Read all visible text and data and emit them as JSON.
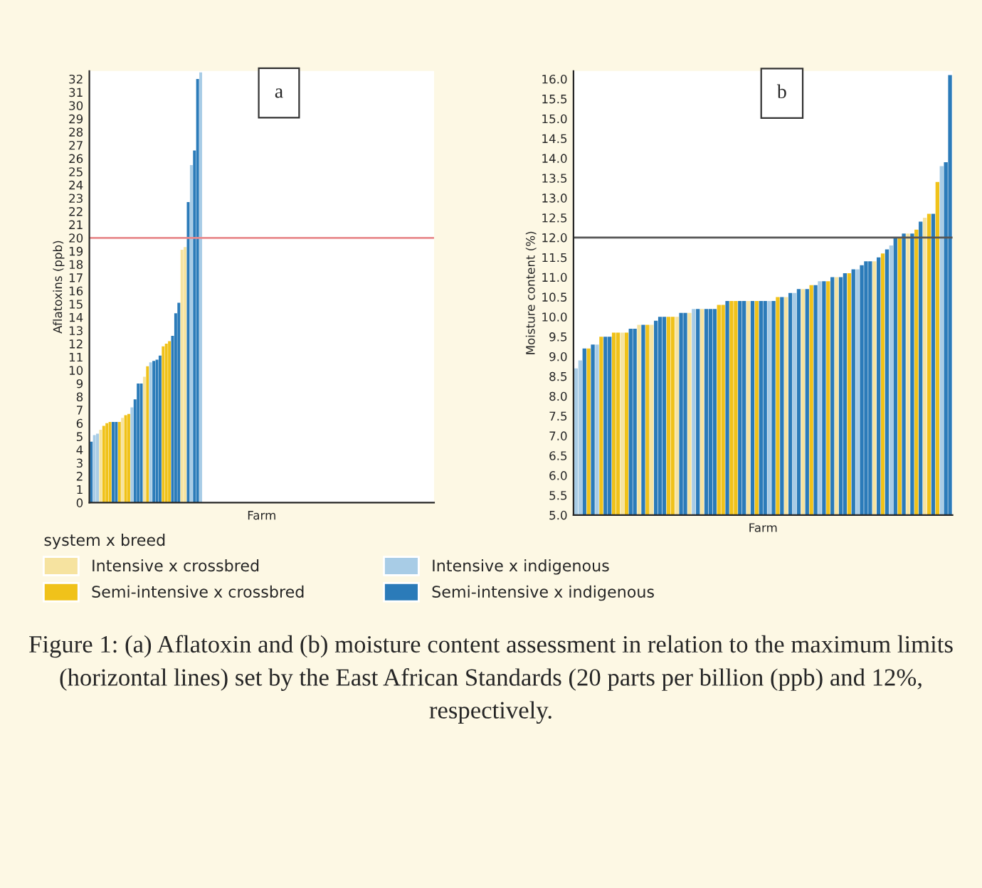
{
  "chart_data": [
    {
      "type": "bar",
      "title": "a",
      "xlabel": "Farm",
      "ylabel": "Aflatoxins (ppb)",
      "legend_title": "system x breed",
      "legend": "bottom",
      "categories": [
        null,
        null,
        null,
        null,
        null,
        null,
        null,
        null,
        null,
        null,
        null,
        null,
        null,
        null,
        null,
        null,
        null,
        null,
        null,
        null,
        null,
        null,
        null,
        null,
        null,
        null,
        null,
        null,
        null,
        null,
        null,
        null,
        null,
        null,
        null,
        null,
        null,
        null,
        null,
        null,
        null,
        null,
        null,
        null,
        null,
        null,
        null,
        null,
        null,
        null,
        null,
        null,
        null,
        null,
        null,
        null,
        null,
        null,
        null,
        null,
        null,
        null,
        null,
        null,
        null,
        null,
        null,
        null,
        null,
        null,
        null,
        null,
        null,
        null,
        null,
        null,
        null,
        null,
        null,
        null,
        null,
        null,
        null,
        null,
        null,
        null,
        null,
        null,
        null,
        null,
        null,
        null,
        null,
        null,
        null,
        null,
        null,
        null,
        null,
        null,
        null,
        null,
        null,
        null,
        null,
        null,
        null,
        null,
        null,
        null
      ],
      "series": [
        {
          "name": "Intensive x crossbred",
          "color": "#f6e3a0",
          "values": [
            null,
            null,
            null,
            5.5,
            null,
            null,
            null,
            null,
            null,
            null,
            6.4,
            null,
            null,
            null,
            null,
            null,
            null,
            9.5,
            null,
            null,
            null,
            null,
            null,
            null,
            null,
            null,
            null,
            null,
            null,
            19.1,
            19.3,
            null,
            null,
            null,
            null,
            null,
            null,
            null,
            null,
            null,
            null,
            null,
            null,
            null,
            null,
            null,
            null,
            null,
            null,
            null,
            null,
            null,
            null,
            null,
            null,
            null,
            null,
            null,
            null,
            null,
            null,
            null,
            null,
            null,
            null,
            null,
            null,
            null,
            null,
            null,
            null,
            null,
            null,
            null,
            null,
            null,
            null,
            null,
            null,
            null,
            null,
            null,
            null,
            null,
            null,
            null,
            null,
            null,
            null,
            null,
            null,
            null,
            null,
            null,
            null,
            null,
            null,
            null,
            null,
            null,
            null,
            null,
            null,
            null,
            null,
            null,
            null,
            null,
            null,
            null
          ]
        },
        {
          "name": "Semi-intensive x crossbred",
          "color": "#f0c21a",
          "values": [
            null,
            null,
            null,
            null,
            5.8,
            6.0,
            6.1,
            null,
            null,
            6.1,
            null,
            6.6,
            6.7,
            null,
            null,
            null,
            null,
            null,
            10.3,
            null,
            null,
            null,
            null,
            11.8,
            12.0,
            12.2,
            null,
            null,
            null,
            null,
            null,
            null,
            null,
            null,
            null,
            null,
            null,
            null,
            null,
            null,
            null,
            null,
            null,
            null,
            null,
            null,
            null,
            null,
            null,
            null,
            null,
            null,
            null,
            null,
            null,
            null,
            null,
            null,
            null,
            null,
            null,
            null,
            null,
            null,
            null,
            null,
            null,
            null,
            null,
            null,
            null,
            null,
            null,
            null,
            null,
            null,
            null,
            null,
            null,
            null,
            null,
            null,
            null,
            null,
            null,
            null,
            null,
            null,
            null,
            null,
            null,
            null,
            null,
            null,
            null,
            null,
            null,
            null,
            null,
            null,
            null,
            null,
            null,
            null,
            null,
            null,
            null,
            null,
            null,
            null
          ]
        },
        {
          "name": "Intensive x indigenous",
          "color": "#a8cce6",
          "values": [
            null,
            5.1,
            5.2,
            null,
            null,
            null,
            null,
            null,
            null,
            null,
            null,
            null,
            null,
            7.2,
            null,
            null,
            null,
            null,
            null,
            10.6,
            null,
            null,
            null,
            null,
            null,
            null,
            null,
            null,
            null,
            null,
            null,
            null,
            25.5,
            null,
            null,
            32.5,
            null,
            null,
            null,
            null,
            null,
            null,
            null,
            null,
            null,
            null,
            null,
            null,
            null,
            null,
            null,
            null,
            null,
            null,
            null,
            null,
            null,
            null,
            null,
            null,
            null,
            null,
            null,
            null,
            null,
            null,
            null,
            null,
            null,
            null,
            null,
            null,
            null,
            null,
            null,
            null,
            null,
            null,
            null,
            null,
            null,
            null,
            null,
            null,
            null,
            null,
            null,
            null,
            null,
            null,
            null,
            null,
            null,
            null,
            null,
            null,
            null,
            null,
            null,
            null,
            null,
            null,
            null,
            null,
            null,
            null,
            null,
            null,
            null,
            null
          ]
        },
        {
          "name": "Semi-intensive x indigenous",
          "color": "#2b7bb9",
          "values": [
            4.6,
            null,
            null,
            null,
            null,
            null,
            null,
            6.1,
            6.1,
            null,
            null,
            null,
            null,
            null,
            7.8,
            9.0,
            9.0,
            null,
            null,
            null,
            10.7,
            10.8,
            11.1,
            null,
            null,
            null,
            12.6,
            14.3,
            15.1,
            null,
            null,
            22.7,
            null,
            26.6,
            32.0,
            null,
            null,
            null,
            null,
            null,
            null,
            null,
            null,
            null,
            null,
            null,
            null,
            null,
            null,
            null,
            null,
            null,
            null,
            null,
            null,
            null,
            null,
            null,
            null,
            null,
            null,
            null,
            null,
            null,
            null,
            null,
            null,
            null,
            null,
            null,
            null,
            null,
            null,
            null,
            null,
            null,
            null,
            null,
            null,
            null,
            null,
            null,
            null,
            null,
            null,
            null,
            null,
            null,
            null,
            null,
            null,
            null,
            null,
            null,
            null,
            null,
            null,
            null,
            null,
            null,
            null,
            null,
            null,
            null,
            null,
            null,
            null,
            null,
            null,
            null
          ]
        }
      ],
      "ylim": [
        0,
        32.6
      ],
      "yticks": [
        0,
        1,
        2,
        3,
        4,
        5,
        6,
        7,
        8,
        9,
        10,
        11,
        12,
        13,
        14,
        15,
        16,
        17,
        18,
        19,
        20,
        21,
        22,
        23,
        24,
        25,
        26,
        27,
        28,
        29,
        30,
        31,
        32
      ],
      "ref_lines": [
        {
          "axis": "y",
          "value": 20,
          "color": "#e88a8c"
        }
      ],
      "annotations": [
        "Figure 1: (a) Aflatoxin and (b) moisture content assessment in relation to the maximum limits (horizontal lines) set by the East African Standards (20 parts per billion (ppb) and 12%, respectively."
      ]
    },
    {
      "type": "bar",
      "title": "b",
      "xlabel": "Farm",
      "ylabel": "Moisture content (%)",
      "categories": [
        null,
        null,
        null,
        null,
        null,
        null,
        null,
        null,
        null,
        null,
        null,
        null,
        null,
        null,
        null,
        null,
        null,
        null,
        null,
        null,
        null,
        null,
        null,
        null,
        null,
        null,
        null,
        null,
        null,
        null,
        null,
        null,
        null,
        null,
        null,
        null,
        null,
        null,
        null,
        null,
        null,
        null,
        null,
        null,
        null,
        null,
        null,
        null,
        null,
        null,
        null,
        null,
        null,
        null,
        null,
        null,
        null,
        null,
        null,
        null,
        null,
        null,
        null,
        null,
        null,
        null,
        null,
        null,
        null,
        null,
        null,
        null,
        null,
        null,
        null,
        null,
        null,
        null,
        null,
        null,
        null,
        null,
        null,
        null,
        null,
        null,
        null,
        null,
        null,
        null
      ],
      "values": [
        8.7,
        8.9,
        9.2,
        9.2,
        9.3,
        9.3,
        9.5,
        9.5,
        9.5,
        9.6,
        9.6,
        9.6,
        9.6,
        9.7,
        9.7,
        9.8,
        9.8,
        9.8,
        9.8,
        9.9,
        10.0,
        10.0,
        10.0,
        10.0,
        10.0,
        10.1,
        10.1,
        10.1,
        10.2,
        10.2,
        10.2,
        10.2,
        10.2,
        10.2,
        10.3,
        10.3,
        10.4,
        10.4,
        10.4,
        10.4,
        10.4,
        10.4,
        10.4,
        10.4,
        10.4,
        10.4,
        10.4,
        10.4,
        10.5,
        10.5,
        10.5,
        10.6,
        10.6,
        10.7,
        10.7,
        10.7,
        10.8,
        10.8,
        10.9,
        10.9,
        10.9,
        11.0,
        11.0,
        11.0,
        11.1,
        11.1,
        11.2,
        11.2,
        11.3,
        11.4,
        11.4,
        11.4,
        11.5,
        11.6,
        11.7,
        11.8,
        12.0,
        12.0,
        12.1,
        12.1,
        12.1,
        12.2,
        12.4,
        12.5,
        12.6,
        12.6,
        13.4,
        13.8,
        13.9,
        16.1
      ],
      "colors": [
        "#a8cce6",
        "#a8cce6",
        "#2b7bb9",
        "#f0c21a",
        "#2b7bb9",
        "#a8cce6",
        "#f0c21a",
        "#2b7bb9",
        "#2b7bb9",
        "#f0c21a",
        "#f0c21a",
        "#f6e3a0",
        "#f0c21a",
        "#2b7bb9",
        "#2b7bb9",
        "#f6e3a0",
        "#2b7bb9",
        "#f0c21a",
        "#f6e3a0",
        "#2b7bb9",
        "#2b7bb9",
        "#2b7bb9",
        "#f0c21a",
        "#f0c21a",
        "#f6e3a0",
        "#2b7bb9",
        "#2b7bb9",
        "#f6e3a0",
        "#a8cce6",
        "#2b7bb9",
        "#f6e3a0",
        "#2b7bb9",
        "#2b7bb9",
        "#2b7bb9",
        "#f0c21a",
        "#f0c21a",
        "#2b7bb9",
        "#f0c21a",
        "#f0c21a",
        "#2b7bb9",
        "#2b7bb9",
        "#f6e3a0",
        "#2b7bb9",
        "#f0c21a",
        "#2b7bb9",
        "#2b7bb9",
        "#a8cce6",
        "#2b7bb9",
        "#f0c21a",
        "#2b7bb9",
        "#f6e3a0",
        "#2b7bb9",
        "#a8cce6",
        "#2b7bb9",
        "#f6e3a0",
        "#2b7bb9",
        "#f0c21a",
        "#2b7bb9",
        "#a8cce6",
        "#2b7bb9",
        "#f0c21a",
        "#2b7bb9",
        "#f6e3a0",
        "#2b7bb9",
        "#2b7bb9",
        "#f0c21a",
        "#2b7bb9",
        "#a8cce6",
        "#2b7bb9",
        "#2b7bb9",
        "#2b7bb9",
        "#f6e3a0",
        "#2b7bb9",
        "#f0c21a",
        "#2b7bb9",
        "#a8cce6",
        "#2b7bb9",
        "#f0c21a",
        "#2b7bb9",
        "#f6e3a0",
        "#2b7bb9",
        "#f0c21a",
        "#2b7bb9",
        "#f6e3a0",
        "#f0c21a",
        "#2b7bb9",
        "#f0c21a",
        "#a8cce6",
        "#2b7bb9",
        "#2b7bb9"
      ],
      "ylim": [
        5.0,
        16.2
      ],
      "yticks": [
        {
          "value": 5,
          "label": "5.0"
        },
        5.5,
        {
          "value": 6,
          "label": "6.0"
        },
        6.5,
        {
          "value": 7,
          "label": "7.0"
        },
        7.5,
        {
          "value": 8,
          "label": "8.0"
        },
        8.5,
        {
          "value": 9,
          "label": "9.0"
        },
        9.5,
        {
          "value": 10,
          "label": "10.0"
        },
        10.5,
        {
          "value": 11,
          "label": "11.0"
        },
        11.5,
        {
          "value": 12,
          "label": "12.0"
        },
        12.5,
        {
          "value": 13,
          "label": "13.0"
        },
        13.5,
        {
          "value": 14,
          "label": "14.0"
        },
        14.5,
        {
          "value": 15,
          "label": "15.0"
        },
        15.5,
        {
          "value": 16,
          "label": "16.0"
        }
      ],
      "ref_lines": [
        {
          "axis": "y",
          "value": 12.0,
          "color": "#555555"
        }
      ]
    }
  ]
}
